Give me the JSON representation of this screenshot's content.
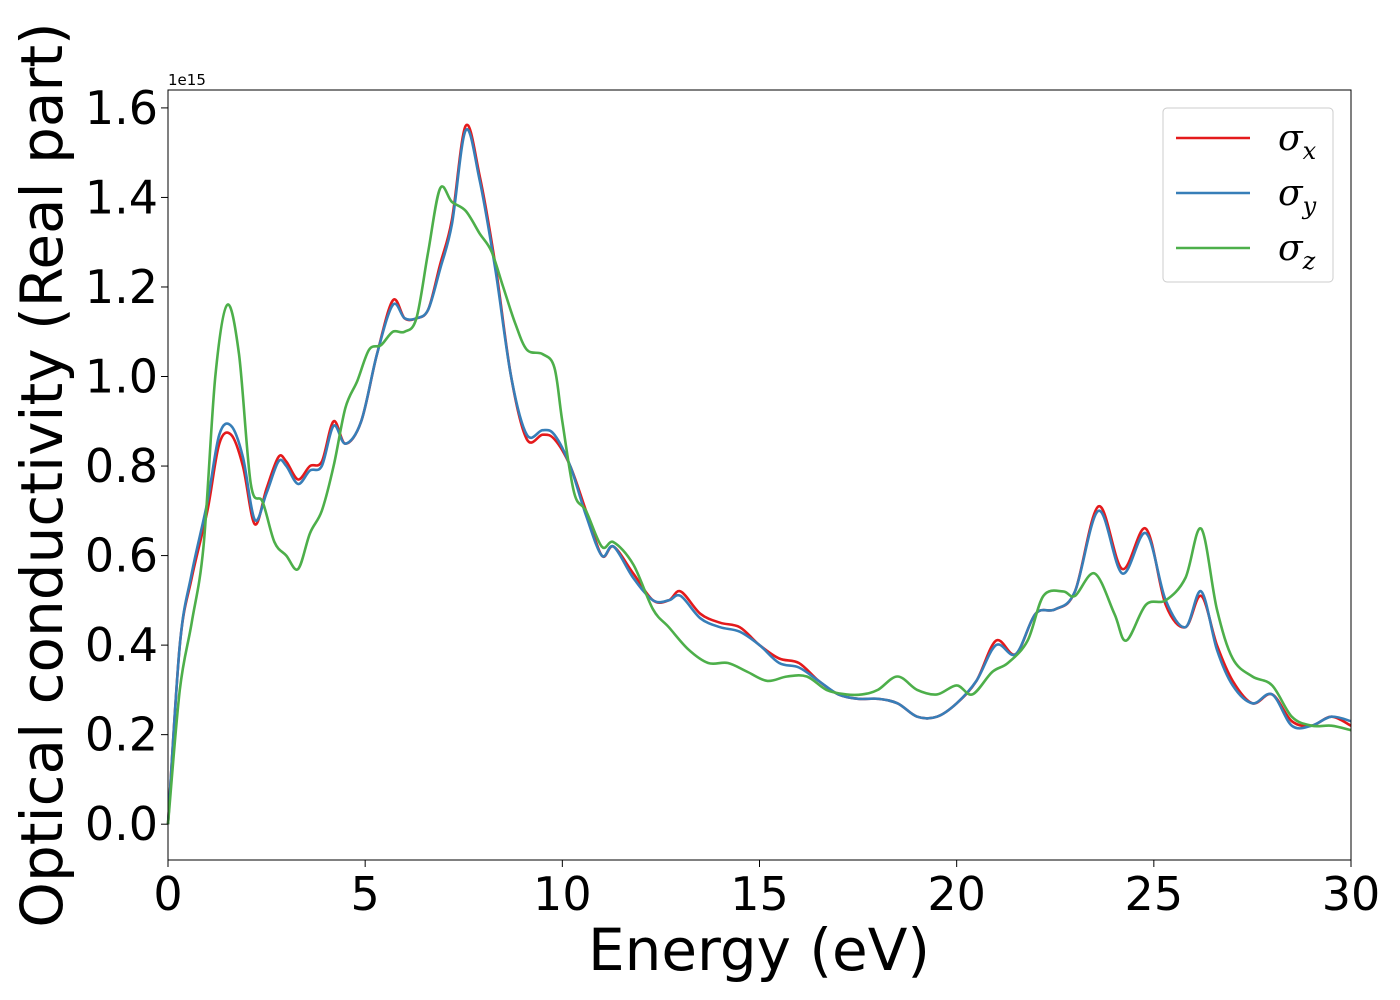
{
  "chart_data": {
    "type": "line",
    "xlabel": "Energy (eV)",
    "ylabel": "Optical conductivity (Real part)",
    "y_offset_label": "1e15",
    "xlim": [
      0,
      30
    ],
    "ylim": [
      -0.08,
      1.64
    ],
    "xticks": [
      0,
      5,
      10,
      15,
      20,
      25,
      30
    ],
    "xtick_labels": [
      "0",
      "5",
      "10",
      "15",
      "20",
      "25",
      "30"
    ],
    "yticks": [
      0.0,
      0.2,
      0.4,
      0.6,
      0.8,
      1.0,
      1.2,
      1.4,
      1.6
    ],
    "ytick_labels": [
      "0.0",
      "0.2",
      "0.4",
      "0.6",
      "0.8",
      "1.0",
      "1.2",
      "1.4",
      "1.6"
    ],
    "grid": false,
    "legend_position": "top-right",
    "series": [
      {
        "name": "σx",
        "legend_symbol": "σ",
        "legend_subscript": "x",
        "color": "#e41a1c",
        "x": [
          0,
          0.3,
          0.6,
          1.0,
          1.3,
          1.6,
          1.9,
          2.2,
          2.5,
          2.8,
          3.0,
          3.3,
          3.6,
          3.9,
          4.2,
          4.5,
          4.9,
          5.3,
          5.7,
          6.0,
          6.3,
          6.6,
          6.9,
          7.2,
          7.55,
          7.9,
          8.3,
          8.7,
          9.1,
          9.5,
          9.8,
          10.2,
          10.6,
          11.0,
          11.3,
          11.8,
          12.3,
          12.7,
          13.0,
          13.5,
          14.0,
          14.5,
          15.0,
          15.5,
          16.0,
          16.5,
          17.0,
          17.5,
          18.0,
          18.5,
          19.0,
          19.5,
          20.0,
          20.5,
          21.0,
          21.5,
          22.0,
          22.5,
          23.0,
          23.6,
          24.2,
          24.8,
          25.3,
          25.8,
          26.2,
          26.6,
          27.0,
          27.5,
          28.0,
          28.5,
          29.0,
          29.5,
          30.0
        ],
        "values": [
          0.0,
          0.4,
          0.55,
          0.7,
          0.85,
          0.87,
          0.8,
          0.67,
          0.75,
          0.82,
          0.81,
          0.77,
          0.8,
          0.81,
          0.9,
          0.85,
          0.9,
          1.05,
          1.17,
          1.13,
          1.13,
          1.15,
          1.25,
          1.35,
          1.56,
          1.45,
          1.25,
          1.0,
          0.86,
          0.87,
          0.86,
          0.8,
          0.7,
          0.6,
          0.62,
          0.56,
          0.5,
          0.5,
          0.52,
          0.47,
          0.45,
          0.44,
          0.4,
          0.37,
          0.36,
          0.32,
          0.29,
          0.28,
          0.28,
          0.27,
          0.24,
          0.24,
          0.27,
          0.32,
          0.41,
          0.38,
          0.47,
          0.48,
          0.52,
          0.71,
          0.57,
          0.66,
          0.49,
          0.44,
          0.51,
          0.4,
          0.32,
          0.27,
          0.29,
          0.23,
          0.22,
          0.24,
          0.22
        ]
      },
      {
        "name": "σy",
        "legend_symbol": "σ",
        "legend_subscript": "y",
        "color": "#377eb8",
        "x": [
          0,
          0.3,
          0.6,
          1.0,
          1.3,
          1.6,
          1.9,
          2.2,
          2.5,
          2.8,
          3.0,
          3.3,
          3.6,
          3.9,
          4.2,
          4.5,
          4.9,
          5.3,
          5.7,
          6.0,
          6.3,
          6.6,
          6.9,
          7.2,
          7.55,
          7.9,
          8.3,
          8.7,
          9.1,
          9.5,
          9.8,
          10.2,
          10.6,
          11.0,
          11.3,
          11.8,
          12.3,
          12.7,
          13.0,
          13.5,
          14.0,
          14.5,
          15.0,
          15.5,
          16.0,
          16.5,
          17.0,
          17.5,
          18.0,
          18.5,
          19.0,
          19.5,
          20.0,
          20.5,
          21.0,
          21.5,
          22.0,
          22.5,
          23.0,
          23.6,
          24.2,
          24.8,
          25.3,
          25.8,
          26.2,
          26.6,
          27.0,
          27.5,
          28.0,
          28.5,
          29.0,
          29.5,
          30.0
        ],
        "values": [
          0.0,
          0.4,
          0.56,
          0.72,
          0.87,
          0.89,
          0.82,
          0.68,
          0.74,
          0.81,
          0.8,
          0.76,
          0.79,
          0.8,
          0.89,
          0.85,
          0.9,
          1.05,
          1.16,
          1.13,
          1.13,
          1.15,
          1.24,
          1.34,
          1.55,
          1.44,
          1.24,
          1.0,
          0.87,
          0.88,
          0.87,
          0.8,
          0.69,
          0.6,
          0.62,
          0.55,
          0.5,
          0.5,
          0.51,
          0.46,
          0.44,
          0.43,
          0.4,
          0.36,
          0.35,
          0.32,
          0.29,
          0.28,
          0.28,
          0.27,
          0.24,
          0.24,
          0.27,
          0.32,
          0.4,
          0.38,
          0.47,
          0.48,
          0.52,
          0.7,
          0.56,
          0.65,
          0.5,
          0.44,
          0.52,
          0.39,
          0.31,
          0.27,
          0.29,
          0.22,
          0.22,
          0.24,
          0.23
        ]
      },
      {
        "name": "σz",
        "legend_symbol": "σ",
        "legend_subscript": "z",
        "color": "#4daf4a",
        "x": [
          0,
          0.3,
          0.6,
          0.9,
          1.2,
          1.5,
          1.8,
          2.1,
          2.4,
          2.7,
          3.0,
          3.3,
          3.6,
          3.9,
          4.2,
          4.5,
          4.8,
          5.1,
          5.4,
          5.7,
          6.0,
          6.3,
          6.6,
          6.9,
          7.2,
          7.55,
          7.9,
          8.2,
          8.5,
          8.8,
          9.1,
          9.5,
          9.8,
          10.0,
          10.3,
          10.6,
          11.0,
          11.3,
          11.8,
          12.3,
          12.7,
          13.2,
          13.7,
          14.2,
          14.7,
          15.2,
          15.7,
          16.2,
          16.7,
          17.2,
          17.6,
          18.0,
          18.5,
          19.0,
          19.5,
          20.0,
          20.4,
          20.9,
          21.3,
          21.8,
          22.2,
          22.7,
          23.0,
          23.5,
          24.0,
          24.3,
          24.8,
          25.3,
          25.8,
          26.2,
          26.6,
          27.0,
          27.5,
          28.0,
          28.5,
          29.0,
          29.5,
          30.0
        ],
        "values": [
          0.0,
          0.3,
          0.45,
          0.62,
          1.0,
          1.16,
          1.05,
          0.76,
          0.72,
          0.63,
          0.6,
          0.57,
          0.65,
          0.7,
          0.8,
          0.93,
          0.99,
          1.06,
          1.07,
          1.1,
          1.1,
          1.13,
          1.28,
          1.42,
          1.39,
          1.37,
          1.32,
          1.28,
          1.2,
          1.12,
          1.06,
          1.05,
          1.02,
          0.9,
          0.74,
          0.7,
          0.62,
          0.63,
          0.58,
          0.48,
          0.44,
          0.39,
          0.36,
          0.36,
          0.34,
          0.32,
          0.33,
          0.33,
          0.3,
          0.29,
          0.29,
          0.3,
          0.33,
          0.3,
          0.29,
          0.31,
          0.29,
          0.34,
          0.36,
          0.41,
          0.51,
          0.52,
          0.51,
          0.56,
          0.47,
          0.41,
          0.49,
          0.5,
          0.55,
          0.66,
          0.48,
          0.37,
          0.33,
          0.31,
          0.24,
          0.22,
          0.22,
          0.21
        ]
      }
    ]
  }
}
